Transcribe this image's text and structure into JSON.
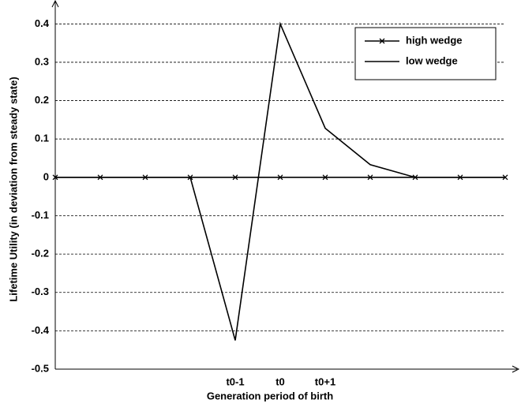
{
  "chart_data": {
    "type": "line",
    "x_label": "Generation period of birth",
    "y_label": "Lifetime Utility  (in deviation from steady state)",
    "categories": [
      null,
      null,
      null,
      null,
      "t0-1",
      "t0",
      "t0+1",
      null,
      null,
      null,
      null
    ],
    "series": [
      {
        "name": "high wedge",
        "color": "#000000",
        "marker": "x",
        "values": [
          0,
          0,
          0,
          0,
          0,
          0,
          0,
          0,
          0,
          0,
          0
        ]
      },
      {
        "name": "low wedge",
        "color": "#000000",
        "values": [
          0,
          0,
          0,
          0,
          -0.425,
          0.4,
          0.128,
          0.033,
          0,
          0,
          0
        ]
      }
    ],
    "ylim": [
      -0.5,
      0.45
    ],
    "yticks": [
      -0.5,
      -0.4,
      -0.3,
      -0.2,
      -0.1,
      0,
      0.1,
      0.2,
      0.3,
      0.4
    ],
    "grid": true,
    "legend": "upper right"
  }
}
